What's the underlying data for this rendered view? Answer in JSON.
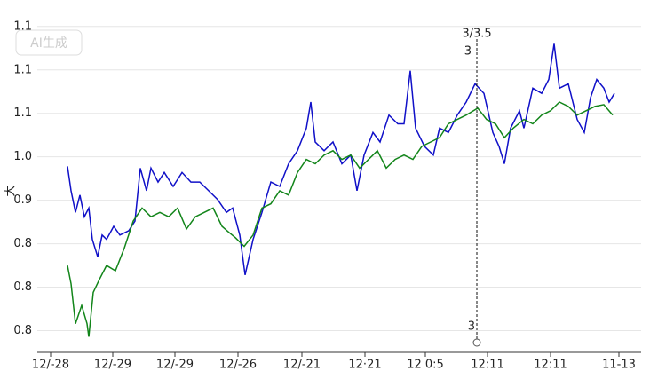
{
  "chart_data": {
    "type": "line",
    "watermark": "AI生成",
    "ylabel": "大",
    "xlim": [
      0,
      680
    ],
    "ylim": [
      0.775,
      1.16
    ],
    "grid": true,
    "xticks": [
      {
        "value": 15,
        "label": "12/-28"
      },
      {
        "value": 85,
        "label": "12/-29"
      },
      {
        "value": 155,
        "label": "12/-29"
      },
      {
        "value": 226,
        "label": "12/-26"
      },
      {
        "value": 298,
        "label": "12/-21"
      },
      {
        "value": 369,
        "label": "12·21"
      },
      {
        "value": 437,
        "label": "12 0:5"
      },
      {
        "value": 507,
        "label": "12:11"
      },
      {
        "value": 578,
        "label": "12:11"
      },
      {
        "value": 655,
        "label": "11-13"
      }
    ],
    "yticks": [
      {
        "value": 1.15,
        "label": "1.1"
      },
      {
        "value": 1.1,
        "label": "1.1"
      },
      {
        "value": 1.05,
        "label": "1.1"
      },
      {
        "value": 1.0,
        "label": "1.0"
      },
      {
        "value": 0.95,
        "label": "0.9"
      },
      {
        "value": 0.9,
        "label": "0.8"
      },
      {
        "value": 0.85,
        "label": "0.8"
      },
      {
        "value": 0.8,
        "label": "0.8"
      }
    ],
    "vline": {
      "x": 495,
      "labels": [
        "3/3.5",
        "3",
        "3"
      ]
    },
    "series": [
      {
        "color": "#1010c8",
        "x": [
          34,
          38,
          43,
          48,
          53,
          58,
          62,
          68,
          73,
          78,
          86,
          93,
          103,
          110,
          116,
          123,
          128,
          136,
          143,
          153,
          163,
          173,
          183,
          193,
          203,
          213,
          220,
          228,
          234,
          243,
          253,
          263,
          273,
          283,
          293,
          303,
          308,
          313,
          323,
          333,
          343,
          353,
          360,
          368,
          378,
          386,
          396,
          406,
          413,
          420,
          426,
          436,
          446,
          453,
          463,
          473,
          483,
          493,
          503,
          513,
          520,
          526,
          533,
          543,
          548,
          558,
          568,
          576,
          582,
          588,
          598,
          608,
          616,
          623,
          630,
          638,
          644,
          650
        ],
        "values": [
          0.989,
          0.961,
          0.936,
          0.956,
          0.931,
          0.941,
          0.905,
          0.885,
          0.91,
          0.905,
          0.92,
          0.91,
          0.915,
          0.926,
          0.987,
          0.961,
          0.987,
          0.971,
          0.982,
          0.966,
          0.982,
          0.971,
          0.971,
          0.961,
          0.951,
          0.936,
          0.941,
          0.91,
          0.864,
          0.905,
          0.936,
          0.971,
          0.966,
          0.992,
          1.007,
          1.033,
          1.063,
          1.017,
          1.007,
          1.017,
          0.992,
          1.002,
          0.961,
          1.002,
          1.028,
          1.017,
          1.048,
          1.038,
          1.038,
          1.099,
          1.033,
          1.012,
          1.002,
          1.033,
          1.028,
          1.048,
          1.063,
          1.084,
          1.073,
          1.028,
          1.012,
          0.992,
          1.033,
          1.053,
          1.033,
          1.079,
          1.073,
          1.089,
          1.13,
          1.079,
          1.084,
          1.043,
          1.028,
          1.068,
          1.089,
          1.079,
          1.063,
          1.073
        ]
      },
      {
        "color": "#12851a",
        "x": [
          34,
          38,
          43,
          50,
          56,
          58,
          63,
          70,
          78,
          88,
          98,
          108,
          118,
          128,
          138,
          148,
          158,
          168,
          178,
          188,
          198,
          208,
          216,
          223,
          233,
          243,
          253,
          263,
          273,
          283,
          293,
          303,
          313,
          323,
          333,
          343,
          353,
          363,
          373,
          383,
          393,
          403,
          413,
          423,
          433,
          443,
          453,
          463,
          473,
          483,
          496,
          506,
          516,
          526,
          536,
          548,
          558,
          568,
          578,
          588,
          598,
          608,
          618,
          628,
          638,
          648
        ],
        "values": [
          0.875,
          0.854,
          0.808,
          0.829,
          0.808,
          0.793,
          0.844,
          0.859,
          0.875,
          0.869,
          0.895,
          0.926,
          0.941,
          0.931,
          0.936,
          0.931,
          0.941,
          0.917,
          0.931,
          0.936,
          0.941,
          0.92,
          0.913,
          0.907,
          0.897,
          0.91,
          0.941,
          0.946,
          0.961,
          0.956,
          0.982,
          0.997,
          0.992,
          1.002,
          1.007,
          0.997,
          1.002,
          0.987,
          0.997,
          1.007,
          0.987,
          0.997,
          1.002,
          0.997,
          1.012,
          1.017,
          1.022,
          1.038,
          1.043,
          1.048,
          1.056,
          1.043,
          1.038,
          1.022,
          1.033,
          1.043,
          1.038,
          1.048,
          1.053,
          1.063,
          1.058,
          1.048,
          1.053,
          1.058,
          1.06,
          1.048
        ]
      }
    ]
  }
}
